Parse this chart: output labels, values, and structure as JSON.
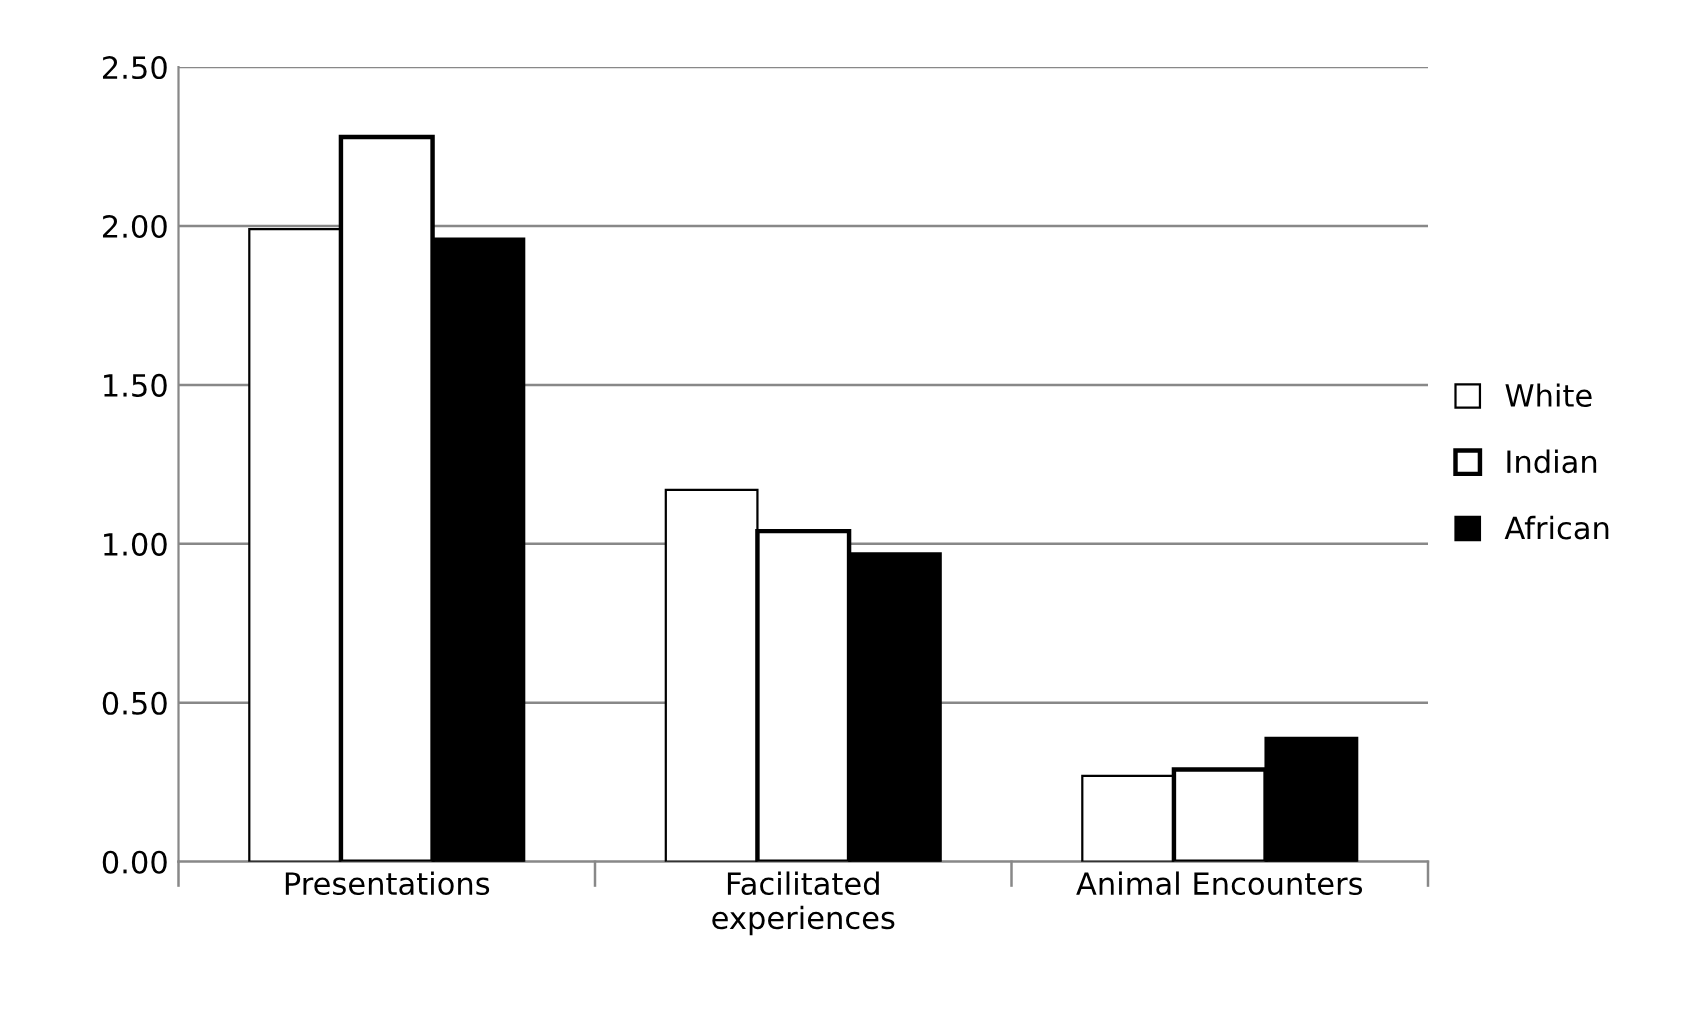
{
  "chart_data": {
    "type": "bar",
    "categories": [
      "Presentations",
      "Facilitated\nexperiences",
      "Animal Encounters"
    ],
    "series": [
      {
        "name": "White",
        "color": "#ffffff",
        "values": [
          1.99,
          1.17,
          0.27
        ]
      },
      {
        "name": "Indian",
        "color": "#ffffff",
        "values": [
          2.28,
          1.04,
          0.29
        ]
      },
      {
        "name": "African",
        "color": "#000000",
        "values": [
          1.96,
          0.97,
          0.39
        ]
      }
    ],
    "ylim": [
      0,
      2.5
    ],
    "yticks": [
      {
        "value": 0,
        "label": "0.00"
      },
      {
        "value": 0.5,
        "label": "0.50"
      },
      {
        "value": 1,
        "label": "1.00"
      },
      {
        "value": 1.5,
        "label": "1.50"
      },
      {
        "value": 2,
        "label": "2.00"
      },
      {
        "value": 2.5,
        "label": "2.50"
      }
    ],
    "grid": "y",
    "legend": "right"
  }
}
